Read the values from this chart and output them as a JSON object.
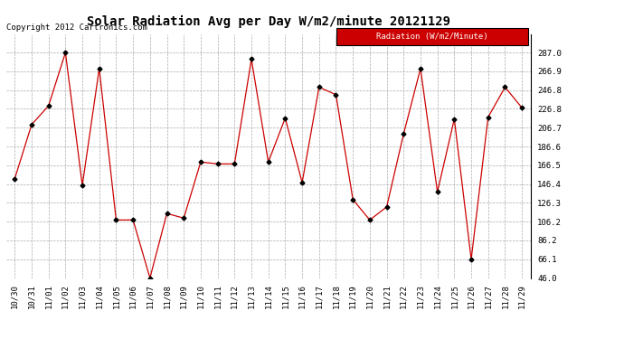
{
  "title": "Solar Radiation Avg per Day W/m2/minute 20121129",
  "copyright": "Copyright 2012 Cartronics.com",
  "legend_label": "Radiation (W/m2/Minute)",
  "dates": [
    "10/30",
    "10/31",
    "11/01",
    "11/02",
    "11/03",
    "11/04",
    "11/05",
    "11/06",
    "11/07",
    "11/08",
    "11/09",
    "11/10",
    "11/11",
    "11/12",
    "11/13",
    "11/14",
    "11/15",
    "11/16",
    "11/17",
    "11/18",
    "11/19",
    "11/20",
    "11/21",
    "11/22",
    "11/23",
    "11/24",
    "11/25",
    "11/26",
    "11/27",
    "11/28",
    "11/29"
  ],
  "values": [
    152.0,
    210.0,
    230.0,
    287.0,
    145.0,
    270.0,
    108.0,
    108.0,
    46.0,
    115.0,
    110.0,
    170.0,
    168.0,
    168.0,
    280.0,
    170.0,
    217.0,
    148.0,
    250.0,
    242.0,
    130.0,
    108.0,
    122.0,
    200.0,
    270.0,
    138.0,
    216.0,
    66.0,
    218.0,
    250.0,
    228.0
  ],
  "line_color": "#cc0000",
  "marker": "D",
  "marker_size": 2.5,
  "marker_color": "#000000",
  "background_color": "#ffffff",
  "grid_color": "#aaaaaa",
  "title_fontsize": 10,
  "copyright_fontsize": 6.5,
  "tick_fontsize": 6.5,
  "legend_bg": "#cc0000",
  "legend_fg": "#ffffff",
  "legend_fontsize": 6.5,
  "ylim": [
    46.0,
    307.0
  ],
  "yticks": [
    46.0,
    66.1,
    86.2,
    106.2,
    126.3,
    146.4,
    166.5,
    186.6,
    206.7,
    226.8,
    246.8,
    266.9,
    287.0
  ]
}
